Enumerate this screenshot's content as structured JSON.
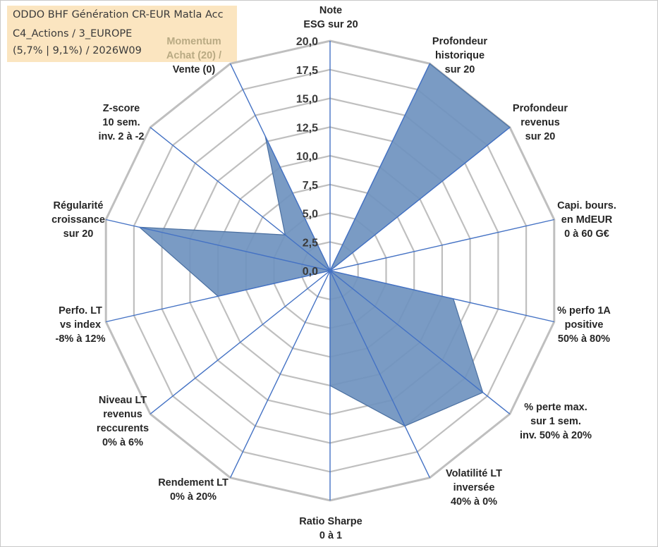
{
  "header": {
    "line1": "ODDO BHF Génération CR-EUR Matla Acc",
    "line2": "C4_Actions / 3_EUROPE",
    "line3": "(5,7% | 9,1%) / 2026W09"
  },
  "colors": {
    "fill": "#6f93bf",
    "stroke": "#4a6fa0",
    "grid": "#bfbfbf",
    "spoke": "#4472c4",
    "header_bg": "#fbe5c0"
  },
  "chart_data": {
    "type": "radar",
    "title": "",
    "rmin": 0,
    "rmax": 20,
    "ticks": [
      "0,0",
      "2,5",
      "5,0",
      "7,5",
      "10,0",
      "12,5",
      "15,0",
      "17,5",
      "20,0"
    ],
    "categories": [
      [
        "Note",
        "ESG sur 20"
      ],
      [
        "Profondeur",
        "historique",
        "sur 20"
      ],
      [
        "Profondeur",
        "revenus",
        "sur 20"
      ],
      [
        "Capi. bours.",
        "en MdEUR",
        "0 à 60 G€"
      ],
      [
        "% perfo 1A",
        "positive",
        "50% à 80%"
      ],
      [
        "% perte max.",
        "sur 1 sem.",
        "inv. 50% à 20%"
      ],
      [
        "Volatilité LT",
        "inversée",
        "40% à 0%"
      ],
      [
        "Ratio Sharpe",
        "0 à 1"
      ],
      [
        "Rendement LT",
        "0% à 20%"
      ],
      [
        "Niveau LT",
        "revenus",
        "reccurents",
        "0% à 6%"
      ],
      [
        "Perfo. LT",
        "vs index",
        "-8% à 12%"
      ],
      [
        "Régularité",
        "croissance",
        "sur 20"
      ],
      [
        "Z-score",
        "10 sem.",
        "inv. 2 à -2"
      ],
      [
        "Momentum",
        "Achat (20) /",
        "Vente (0)"
      ]
    ],
    "series": [
      {
        "name": "ODDO BHF Génération CR-EUR Matla Acc",
        "values": [
          0,
          20,
          20,
          0,
          11,
          17,
          15,
          10,
          0,
          0,
          10,
          17,
          5,
          13
        ]
      }
    ]
  }
}
